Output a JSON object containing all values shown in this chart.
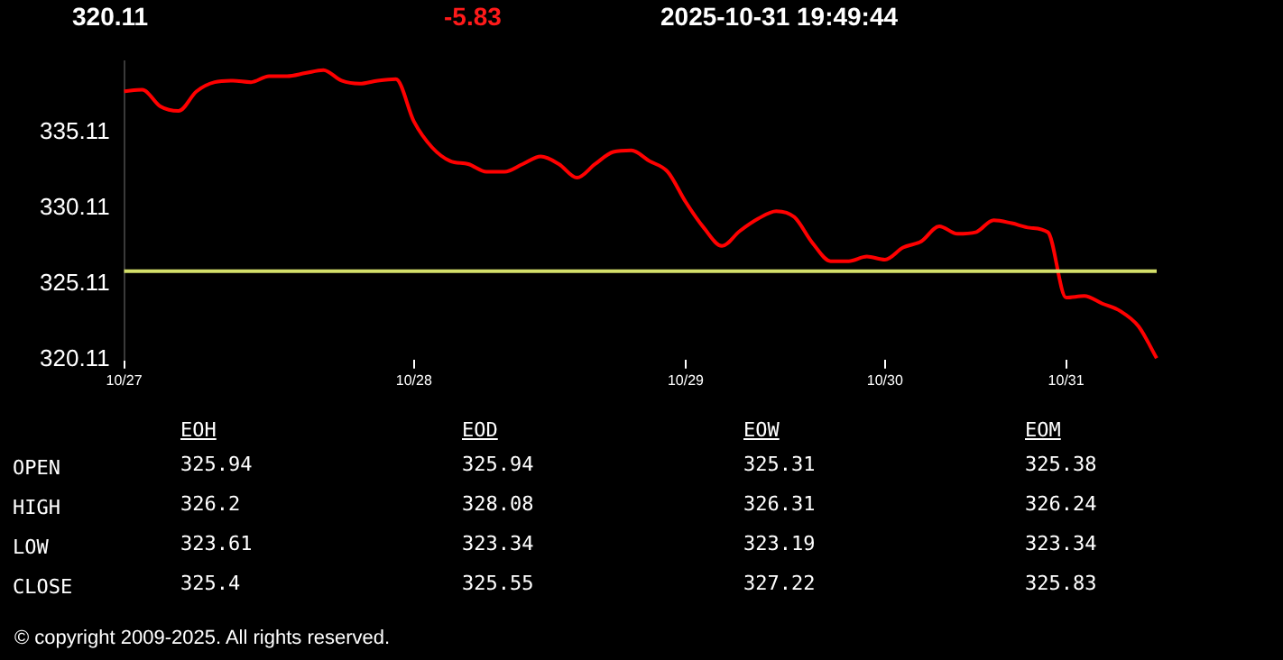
{
  "chart_data": [
    {
      "type": "line",
      "title": "320.11",
      "subtitle": "-5.83",
      "annotations": [
        "2025-10-31 19:49:44",
        "© copyright 2009-2025. All rights reserved."
      ],
      "categories": [
        "10/27",
        null,
        null,
        null,
        null,
        null,
        null,
        null,
        null,
        null,
        null,
        null,
        null,
        null,
        null,
        null,
        "10/28",
        null,
        null,
        null,
        null,
        null,
        null,
        null,
        null,
        null,
        null,
        null,
        null,
        null,
        null,
        "10/29",
        null,
        null,
        null,
        null,
        null,
        null,
        null,
        null,
        null,
        null,
        "10/30",
        null,
        null,
        null,
        null,
        null,
        null,
        null,
        null,
        null,
        "10/31",
        null,
        null,
        null,
        null,
        null
      ],
      "ylim": [
        320.11,
        339.8
      ],
      "yticks": [
        320.11,
        325.11,
        330.11,
        335.11
      ],
      "grid": false,
      "legend": false,
      "marker": "none",
      "line_style": "solid",
      "ref_lines": [
        {
          "axis": "y",
          "value": 325.94,
          "color": "#d4e06a"
        }
      ],
      "series": [
        {
          "color": "#ff0000",
          "values": [
            337.8,
            337.9,
            336.8,
            336.5,
            337.8,
            338.4,
            338.5,
            338.4,
            338.8,
            338.8,
            339.0,
            339.2,
            338.5,
            338.3,
            338.5,
            338.6,
            335.8,
            334.1,
            333.2,
            333.0,
            332.5,
            332.5,
            333.0,
            333.5,
            333.0,
            332.1,
            333.0,
            333.8,
            333.9,
            333.2,
            332.5,
            330.5,
            328.8,
            327.6,
            328.6,
            329.4,
            329.9,
            329.5,
            327.8,
            326.6,
            326.6,
            326.9,
            326.7,
            327.5,
            327.9,
            328.9,
            328.4,
            328.5,
            329.3,
            329.1,
            328.8,
            328.5,
            324.2,
            324.3,
            323.8,
            323.3,
            322.3,
            320.2
          ]
        }
      ]
    },
    {
      "type": "other",
      "categories": [
        "EOH",
        "EOD",
        "EOW",
        "EOM"
      ],
      "y_categories": [
        "OPEN",
        "HIGH",
        "LOW",
        "CLOSE"
      ],
      "cells": [
        [
          "325.94",
          "325.94",
          "325.31",
          "325.38"
        ],
        [
          "326.2",
          "328.08",
          "326.31",
          "326.24"
        ],
        [
          "323.61",
          "323.34",
          "323.19",
          "323.34"
        ],
        [
          "325.4",
          "325.55",
          "327.22",
          "325.83"
        ]
      ]
    }
  ]
}
